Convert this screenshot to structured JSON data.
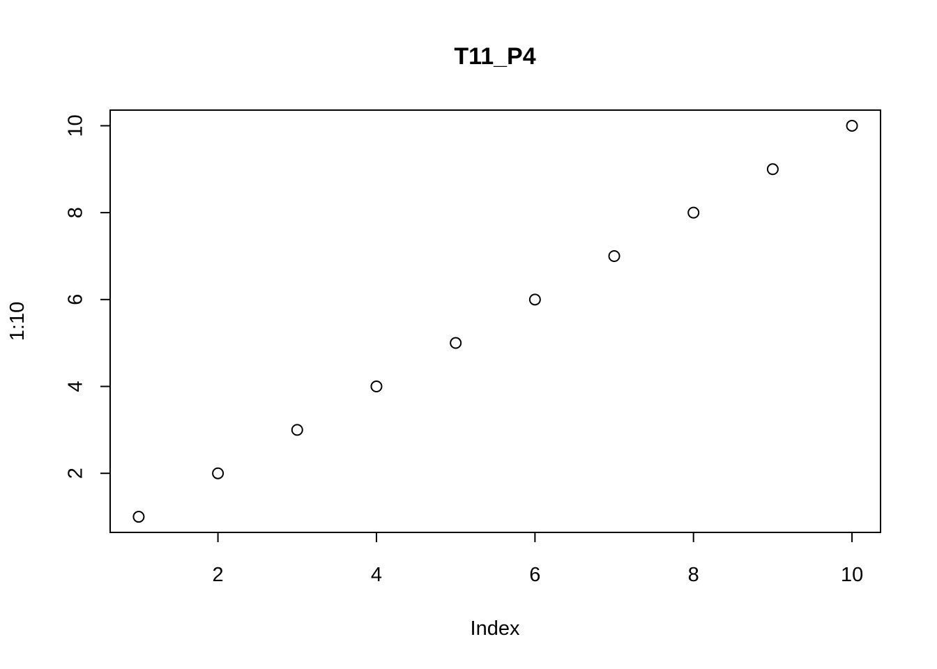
{
  "chart_data": {
    "type": "scatter",
    "title": "T11_P4",
    "xlabel": "Index",
    "ylabel": "1:10",
    "x": [
      1,
      2,
      3,
      4,
      5,
      6,
      7,
      8,
      9,
      10
    ],
    "y": [
      1,
      2,
      3,
      4,
      5,
      6,
      7,
      8,
      9,
      10
    ],
    "xlim": [
      0.64,
      10.36
    ],
    "ylim": [
      0.64,
      10.36
    ],
    "xticks": [
      2,
      4,
      6,
      8,
      10
    ],
    "yticks": [
      2,
      4,
      6,
      8,
      10
    ],
    "grid": false,
    "marker": "open-circle"
  }
}
